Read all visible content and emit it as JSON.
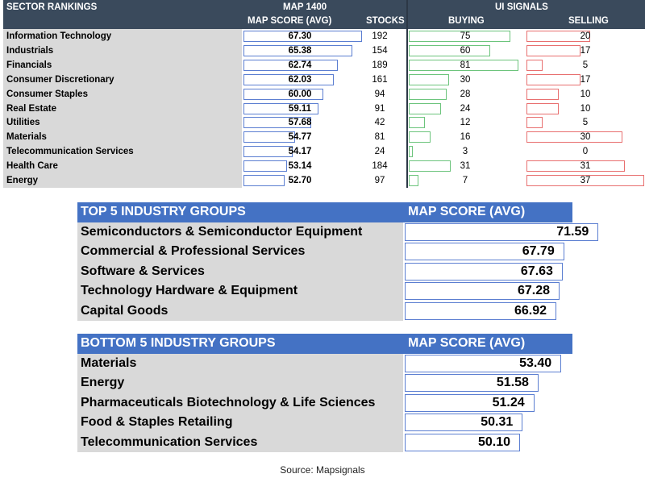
{
  "sector_rankings": {
    "headers": {
      "title": "SECTOR RANKINGS",
      "map_group": "MAP 1400",
      "map_score": "MAP SCORE (AVG)",
      "stocks": "STOCKS",
      "signals_group": "UI SIGNALS",
      "buying": "BUYING",
      "selling": "SELLING"
    },
    "rows": [
      {
        "sector": "Information Technology",
        "map_score": "67.30",
        "stocks": "192",
        "buying": "75",
        "selling": "20"
      },
      {
        "sector": "Industrials",
        "map_score": "65.38",
        "stocks": "154",
        "buying": "60",
        "selling": "17"
      },
      {
        "sector": "Financials",
        "map_score": "62.74",
        "stocks": "189",
        "buying": "81",
        "selling": "5"
      },
      {
        "sector": "Consumer Discretionary",
        "map_score": "62.03",
        "stocks": "161",
        "buying": "30",
        "selling": "17"
      },
      {
        "sector": "Consumer Staples",
        "map_score": "60.00",
        "stocks": "94",
        "buying": "28",
        "selling": "10"
      },
      {
        "sector": "Real Estate",
        "map_score": "59.11",
        "stocks": "91",
        "buying": "24",
        "selling": "10"
      },
      {
        "sector": "Utilities",
        "map_score": "57.68",
        "stocks": "42",
        "buying": "12",
        "selling": "5"
      },
      {
        "sector": "Materials",
        "map_score": "54.77",
        "stocks": "81",
        "buying": "16",
        "selling": "30"
      },
      {
        "sector": "Telecommunication Services",
        "map_score": "54.17",
        "stocks": "24",
        "buying": "3",
        "selling": "0"
      },
      {
        "sector": "Health Care",
        "map_score": "53.14",
        "stocks": "184",
        "buying": "31",
        "selling": "31"
      },
      {
        "sector": "Energy",
        "map_score": "52.70",
        "stocks": "97",
        "buying": "7",
        "selling": "37"
      }
    ]
  },
  "top5": {
    "header_left": "TOP 5 INDUSTRY GROUPS",
    "header_right": "MAP SCORE (AVG)",
    "rows": [
      {
        "group": "Semiconductors & Semiconductor Equipment",
        "score": "71.59"
      },
      {
        "group": "Commercial & Professional Services",
        "score": "67.79"
      },
      {
        "group": "Software & Services",
        "score": "67.63"
      },
      {
        "group": "Technology Hardware & Equipment",
        "score": "67.28"
      },
      {
        "group": "Capital Goods",
        "score": "66.92"
      }
    ]
  },
  "bottom5": {
    "header_left": "BOTTOM 5 INDUSTRY GROUPS",
    "header_right": "MAP SCORE (AVG)",
    "rows": [
      {
        "group": "Materials",
        "score": "53.40"
      },
      {
        "group": "Energy",
        "score": "51.58"
      },
      {
        "group": "Pharmaceuticals Biotechnology & Life Sciences",
        "score": "51.24"
      },
      {
        "group": "Food & Staples Retailing",
        "score": "50.31"
      },
      {
        "group": "Telecommunication Services",
        "score": "50.10"
      }
    ]
  },
  "source": "Source: Mapsignals",
  "colors": {
    "sector_header_bg": "#3a4a5c",
    "group_header_bg": "#4472c4",
    "name_column_bg": "#d9d9d9",
    "map_bar_border": "#5b7ed1",
    "buy_bar_border": "#6cc47c",
    "sell_bar_border": "#e86f6f"
  }
}
